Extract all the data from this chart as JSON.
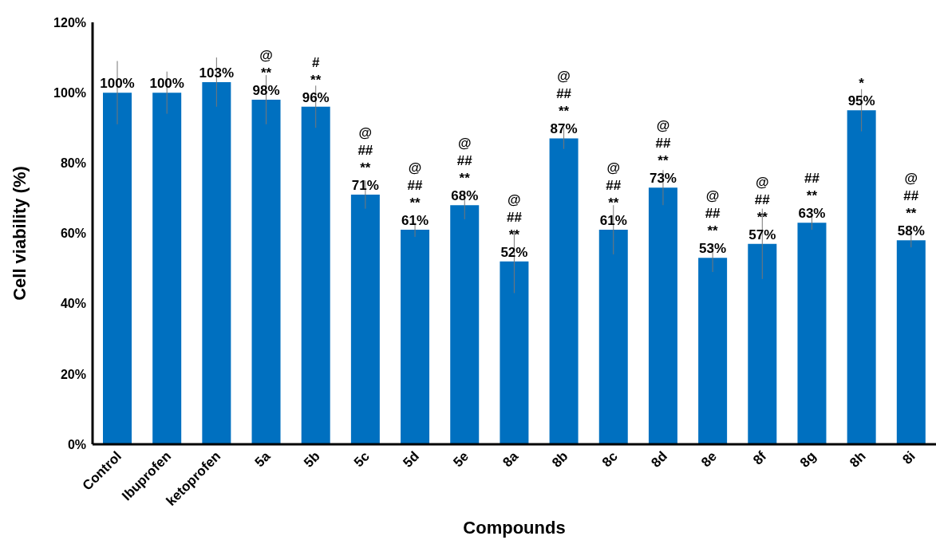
{
  "chart_data": {
    "type": "bar",
    "xlabel": "Compounds",
    "ylabel": "Cell viability (%)",
    "categories": [
      "Control",
      "Ibuprofen",
      "ketoprofen",
      "5a",
      "5b",
      "5c",
      "5d",
      "5e",
      "8a",
      "8b",
      "8c",
      "8d",
      "8e",
      "8f",
      "8g",
      "8h",
      "8i"
    ],
    "values": [
      100,
      100,
      103,
      98,
      96,
      71,
      61,
      68,
      52,
      87,
      61,
      73,
      53,
      57,
      63,
      95,
      58
    ],
    "errors": [
      9,
      6,
      7,
      7,
      6,
      4,
      2,
      4,
      9,
      3,
      7,
      5,
      4,
      10,
      2,
      6,
      2
    ],
    "value_labels": [
      "100%",
      "100%",
      "103%",
      "@\n**\n98%",
      "#\n**\n96%",
      "@\n##\n**\n71%",
      "@\n##\n**\n61%",
      "@\n##\n**\n68%",
      "@\n##\n**\n52%",
      "@\n##\n**\n87%",
      "@\n##\n**\n61%",
      "@\n##\n**\n73%",
      "@\n##\n**\n53%",
      "@\n##\n**\n57%",
      "##\n**\n63%",
      "*\n95%",
      "@\n##\n**\n58%"
    ],
    "color": "#0070c0",
    "ylim": [
      0,
      120
    ],
    "yticks": [
      {
        "value": 0,
        "label": "0%"
      },
      {
        "value": 20,
        "label": "20%"
      },
      {
        "value": 40,
        "label": "40%"
      },
      {
        "value": 60,
        "label": "60%"
      },
      {
        "value": 80,
        "label": "80%"
      },
      {
        "value": 100,
        "label": "100%"
      },
      {
        "value": 120,
        "label": "120%"
      }
    ],
    "grid": false,
    "legend": false
  }
}
